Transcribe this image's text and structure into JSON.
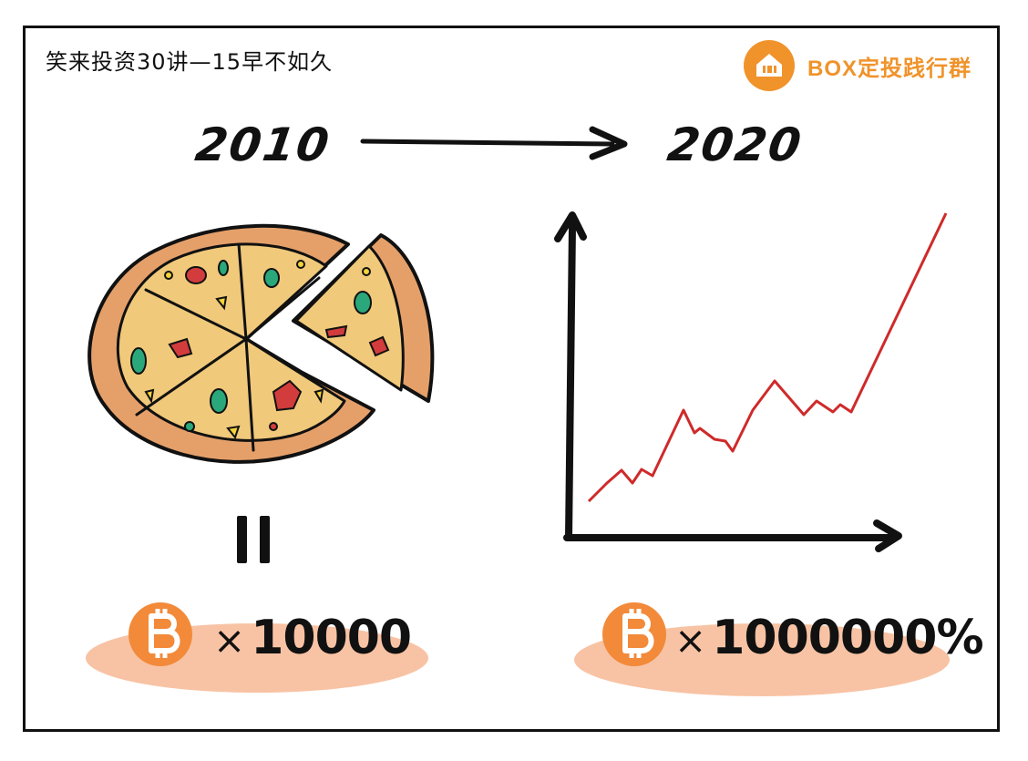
{
  "header": {
    "title": "笑来投资30讲—15早不如久",
    "brand_name": "BOX定投践行群"
  },
  "timeline": {
    "start_year": "2010",
    "end_year": "2020"
  },
  "left_panel": {
    "subject": "pizza",
    "equals_sign": "=",
    "coin_icon": "bitcoin-icon",
    "times_symbol": "×",
    "amount": "10000"
  },
  "right_panel": {
    "subject": "price-growth-line",
    "coin_icon": "bitcoin-icon",
    "times_symbol": "×",
    "amount": "1000000%"
  },
  "colors": {
    "brand_orange": "#f0932b",
    "coin_orange": "#f28a3a",
    "blob_peach": "#f8c3a4",
    "pizza_crust": "#e5a06a",
    "pizza_cheese": "#f0c97a",
    "line_red": "#cf2a2a"
  }
}
